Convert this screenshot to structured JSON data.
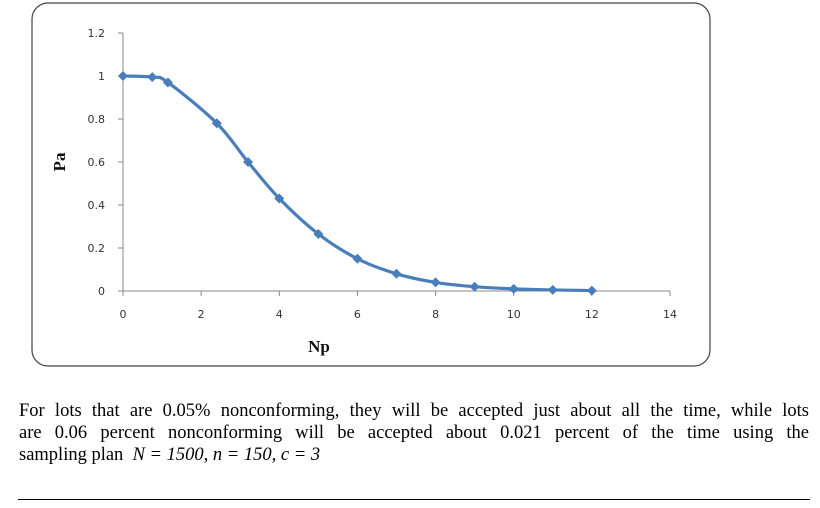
{
  "chart_data": {
    "type": "line",
    "title": "",
    "xlabel": "Np",
    "ylabel": "Pa",
    "xlim": [
      0,
      14
    ],
    "ylim": [
      0,
      1.2
    ],
    "xticks": [
      "0",
      "2",
      "4",
      "6",
      "8",
      "10",
      "12",
      "14"
    ],
    "yticks": [
      "0",
      "0.2",
      "0.4",
      "0.6",
      "0.8",
      "1",
      "1.2"
    ],
    "grid": false,
    "marker": "diamond",
    "smooth": true,
    "color": "#4a7ebb",
    "series": [
      {
        "x": [
          0,
          0.75,
          1.15,
          2.4,
          3.2,
          4,
          5,
          6,
          7,
          8,
          9,
          10,
          11,
          12
        ],
        "y": [
          1.0,
          0.995,
          0.97,
          0.78,
          0.6,
          0.43,
          0.265,
          0.15,
          0.08,
          0.04,
          0.02,
          0.01,
          0.005,
          0.002
        ]
      }
    ]
  },
  "text": {
    "line1": "For lots that are 0.05% nonconforming, they will be accepted just about all the time, while lots",
    "line2": "are 0.06 percent nonconforming will be accepted about 0.021 percent of the time using the",
    "line3_prefix": "sampling plan",
    "formula": "N = 1500, n = 150, c = 3"
  }
}
